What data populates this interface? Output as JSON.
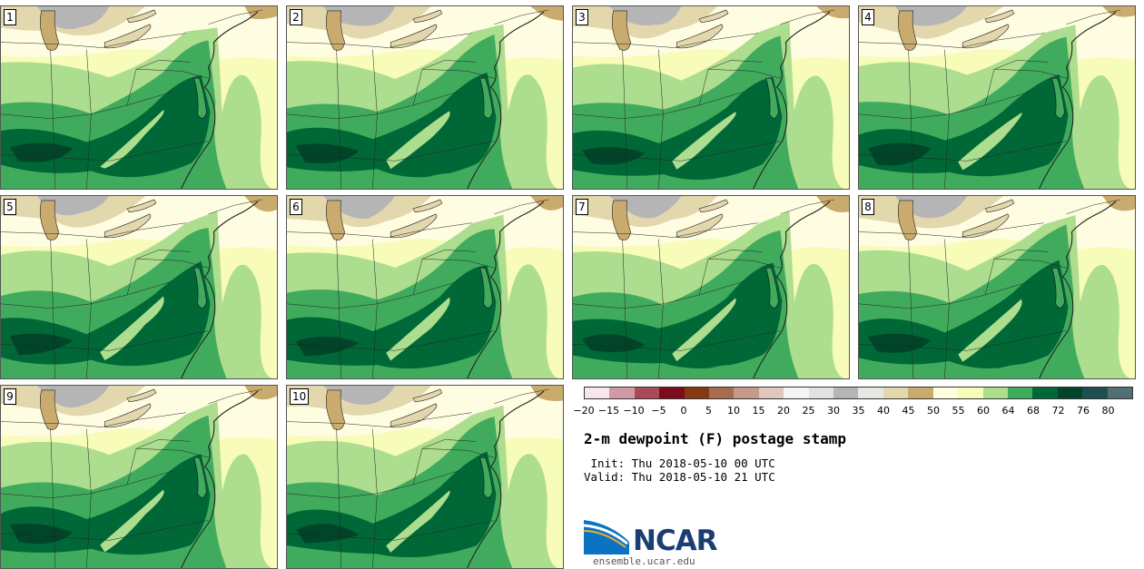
{
  "title": "2-m dewpoint (F) postage stamp",
  "init": "Init: Thu 2018-05-10 00 UTC",
  "valid": "Valid: Thu 2018-05-10 21 UTC",
  "logo_text": "NCAR",
  "logo_url": "ensemble.ucar.edu",
  "members": [
    "1",
    "2",
    "3",
    "4",
    "5",
    "6",
    "7",
    "8",
    "9",
    "10"
  ],
  "colorbar": {
    "ticks": [
      "−20",
      "−15",
      "−10",
      "−5",
      "0",
      "5",
      "10",
      "15",
      "20",
      "25",
      "30",
      "35",
      "40",
      "45",
      "50",
      "55",
      "60",
      "64",
      "68",
      "72",
      "76",
      "80"
    ],
    "colors": [
      "#f8e6ea",
      "#d19aa6",
      "#a94a58",
      "#7d0b1c",
      "#853813",
      "#a66c4c",
      "#c59a88",
      "#e1c8bc",
      "#f5f5f5",
      "#e2e2e2",
      "#b5b5b5",
      "#e8e8e3",
      "#e2d7ad",
      "#c9ab6e",
      "#fffde1",
      "#f7fcb9",
      "#addd8e",
      "#41ab5d",
      "#006837",
      "#004529",
      "#1d4f52",
      "#507071"
    ]
  },
  "map_colors": {
    "band_55": "#fffde1",
    "band_60": "#f7fcb9",
    "band_64": "#addd8e",
    "band_68": "#41ab5d",
    "band_72": "#006837",
    "band_76": "#004529",
    "band_45": "#c9ab6e",
    "band_40": "#e2d7ad",
    "band_30": "#b5b5b5",
    "border": "#222222"
  }
}
